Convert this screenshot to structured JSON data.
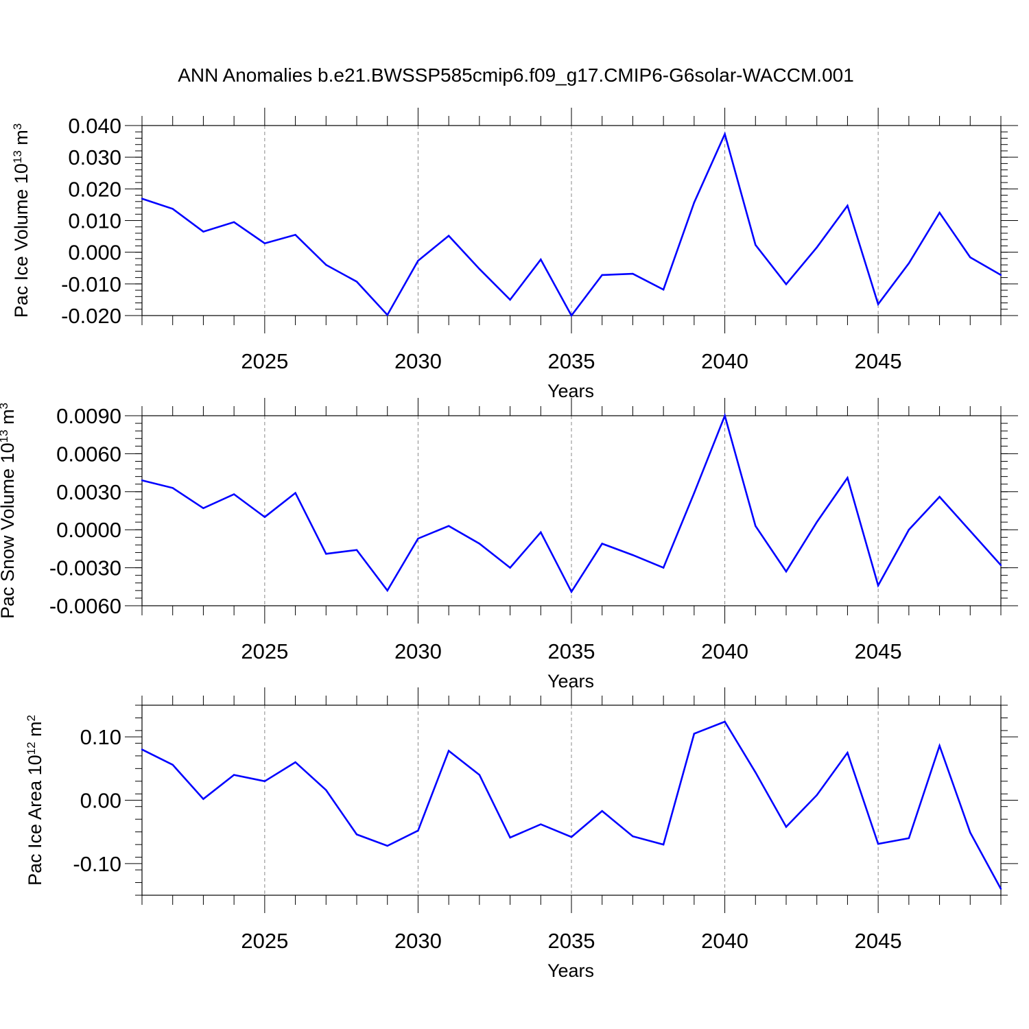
{
  "title": "ANN Anomalies b.e21.BWSSP585cmip6.f09_g17.CMIP6-G6solar-WACCM.001",
  "colors": {
    "line": "#0000ff",
    "axis": "#000000",
    "grid": "#888888"
  },
  "chart_data": [
    {
      "type": "line",
      "ylabel": "Pac Ice Volume 10",
      "ylabel_exp": "13",
      "ylabel_unit": "m",
      "ylabel_unit_exp": "3",
      "xlabel": "Years",
      "xlim": [
        2021,
        2049
      ],
      "ylim": [
        -0.02,
        0.04
      ],
      "y_ticks": [
        -0.02,
        -0.01,
        0.0,
        0.01,
        0.02,
        0.03,
        0.04
      ],
      "y_tick_labels": [
        "-0.020",
        "-0.010",
        "0.000",
        "0.010",
        "0.020",
        "0.030",
        "0.040"
      ],
      "y_minor_step": 0.002,
      "x_ticks": [
        2025,
        2030,
        2035,
        2040,
        2045
      ],
      "x_tick_labels": [
        "2025",
        "2030",
        "2035",
        "2040",
        "2045"
      ],
      "x": [
        2021,
        2022,
        2023,
        2024,
        2025,
        2026,
        2027,
        2028,
        2029,
        2030,
        2031,
        2032,
        2033,
        2034,
        2035,
        2036,
        2037,
        2038,
        2039,
        2040,
        2041,
        2042,
        2043,
        2044,
        2045,
        2046,
        2047,
        2048,
        2049
      ],
      "values": [
        0.0169,
        0.0137,
        0.0065,
        0.0095,
        0.0028,
        0.0055,
        -0.004,
        -0.0093,
        -0.0198,
        -0.0027,
        0.0052,
        -0.0053,
        -0.015,
        -0.0023,
        -0.02,
        -0.0072,
        -0.0068,
        -0.0118,
        0.0157,
        0.0373,
        0.0023,
        -0.0101,
        0.0015,
        0.0147,
        -0.0164,
        -0.0035,
        0.0125,
        -0.0016,
        -0.0072
      ]
    },
    {
      "type": "line",
      "ylabel": "Pac Snow Volume 10",
      "ylabel_exp": "13",
      "ylabel_unit": "m",
      "ylabel_unit_exp": "3",
      "xlabel": "Years",
      "xlim": [
        2021,
        2049
      ],
      "ylim": [
        -0.006,
        0.009
      ],
      "y_ticks": [
        -0.006,
        -0.003,
        0.0,
        0.003,
        0.006,
        0.009
      ],
      "y_tick_labels": [
        "-0.0060",
        "-0.0030",
        "0.0000",
        "0.0030",
        "0.0060",
        "0.0090"
      ],
      "y_minor_step": 0.0006,
      "x_ticks": [
        2025,
        2030,
        2035,
        2040,
        2045
      ],
      "x_tick_labels": [
        "2025",
        "2030",
        "2035",
        "2040",
        "2045"
      ],
      "x": [
        2021,
        2022,
        2023,
        2024,
        2025,
        2026,
        2027,
        2028,
        2029,
        2030,
        2031,
        2032,
        2033,
        2034,
        2035,
        2036,
        2037,
        2038,
        2039,
        2040,
        2041,
        2042,
        2043,
        2044,
        2045,
        2046,
        2047,
        2048,
        2049
      ],
      "values": [
        0.0039,
        0.0033,
        0.0017,
        0.0028,
        0.001,
        0.0029,
        -0.0019,
        -0.0016,
        -0.0048,
        -0.0007,
        0.0003,
        -0.0011,
        -0.003,
        -0.0002,
        -0.0049,
        -0.0011,
        -0.002,
        -0.003,
        0.0029,
        0.009,
        0.0003,
        -0.0033,
        0.0006,
        0.0041,
        -0.0044,
        0.0,
        0.0026,
        -0.0001,
        -0.0028
      ]
    },
    {
      "type": "line",
      "ylabel": "Pac Ice Area 10",
      "ylabel_exp": "12",
      "ylabel_unit": "m",
      "ylabel_unit_exp": "2",
      "xlabel": "Years",
      "xlim": [
        2021,
        2049
      ],
      "ylim": [
        -0.15,
        0.15
      ],
      "y_ticks": [
        -0.1,
        0.0,
        0.1
      ],
      "y_tick_labels": [
        "-0.10",
        "0.00",
        "0.10"
      ],
      "y_minor_step": 0.02,
      "x_ticks": [
        2025,
        2030,
        2035,
        2040,
        2045
      ],
      "x_tick_labels": [
        "2025",
        "2030",
        "2035",
        "2040",
        "2045"
      ],
      "x": [
        2021,
        2022,
        2023,
        2024,
        2025,
        2026,
        2027,
        2028,
        2029,
        2030,
        2031,
        2032,
        2033,
        2034,
        2035,
        2036,
        2037,
        2038,
        2039,
        2040,
        2041,
        2042,
        2043,
        2044,
        2045,
        2046,
        2047,
        2048,
        2049
      ],
      "values": [
        0.08,
        0.056,
        0.002,
        0.04,
        0.03,
        0.06,
        0.016,
        -0.054,
        -0.072,
        -0.048,
        0.078,
        0.04,
        -0.059,
        -0.038,
        -0.058,
        -0.017,
        -0.057,
        -0.07,
        0.105,
        0.124,
        0.044,
        -0.042,
        0.008,
        0.075,
        -0.069,
        -0.06,
        0.086,
        -0.051,
        -0.14
      ]
    }
  ]
}
